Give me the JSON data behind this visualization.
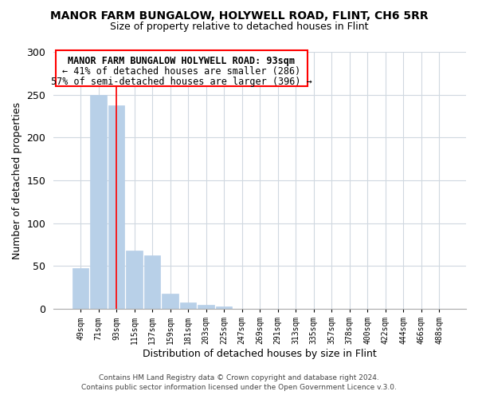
{
  "title": "MANOR FARM BUNGALOW, HOLYWELL ROAD, FLINT, CH6 5RR",
  "subtitle": "Size of property relative to detached houses in Flint",
  "xlabel": "Distribution of detached houses by size in Flint",
  "ylabel": "Number of detached properties",
  "bar_labels": [
    "49sqm",
    "71sqm",
    "93sqm",
    "115sqm",
    "137sqm",
    "159sqm",
    "181sqm",
    "203sqm",
    "225sqm",
    "247sqm",
    "269sqm",
    "291sqm",
    "313sqm",
    "335sqm",
    "357sqm",
    "378sqm",
    "400sqm",
    "422sqm",
    "444sqm",
    "466sqm",
    "488sqm"
  ],
  "bar_values": [
    48,
    250,
    238,
    68,
    63,
    18,
    8,
    5,
    3,
    0,
    0,
    0,
    0,
    0,
    0,
    0,
    0,
    0,
    0,
    0,
    0
  ],
  "bar_color": "#b8d0e8",
  "red_line_x": 2,
  "ylim": [
    0,
    300
  ],
  "yticks": [
    0,
    50,
    100,
    150,
    200,
    250,
    300
  ],
  "annotation_title": "MANOR FARM BUNGALOW HOLYWELL ROAD: 93sqm",
  "annotation_line1": "← 41% of detached houses are smaller (286)",
  "annotation_line2": "57% of semi-detached houses are larger (396) →",
  "footer1": "Contains HM Land Registry data © Crown copyright and database right 2024.",
  "footer2": "Contains public sector information licensed under the Open Government Licence v.3.0.",
  "bg_color": "#ffffff",
  "grid_color": "#d0d8e0"
}
